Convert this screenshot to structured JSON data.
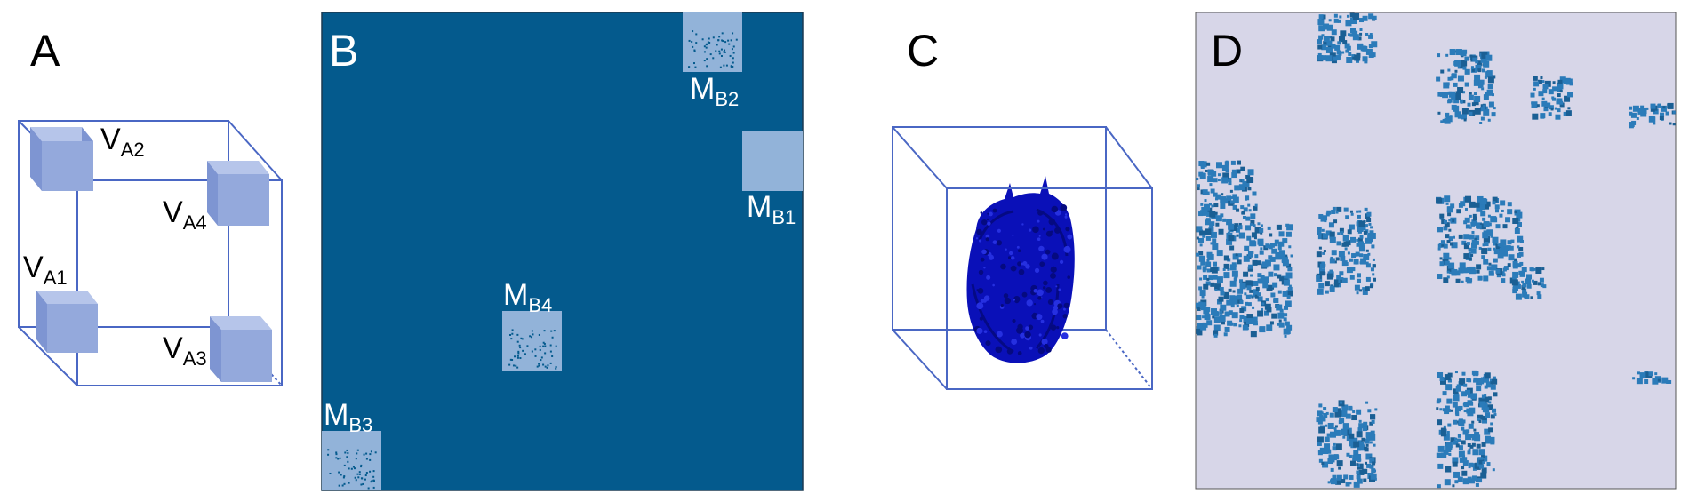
{
  "panels": {
    "a": {
      "letter": "A",
      "labels": [
        {
          "main": "V",
          "sub": "A2"
        },
        {
          "main": "V",
          "sub": "A4"
        },
        {
          "main": "V",
          "sub": "A1"
        },
        {
          "main": "V",
          "sub": "A3"
        }
      ]
    },
    "b": {
      "letter": "B",
      "labels": [
        {
          "main": "M",
          "sub": "B2"
        },
        {
          "main": "M",
          "sub": "B1"
        },
        {
          "main": "M",
          "sub": "B4"
        },
        {
          "main": "M",
          "sub": "B3"
        }
      ]
    },
    "c": {
      "letter": "C"
    },
    "d": {
      "letter": "D"
    }
  },
  "colors": {
    "cube_edge": "#4a67c4",
    "small_cube_front": "#94a9dc",
    "small_cube_top": "#b6c5ea",
    "small_cube_side": "#7e95d2",
    "matrix_bg": "#045a8d",
    "matrix_block": "#92b3d9",
    "blob": "#0a10b8",
    "heatmap_bg": "#d7d6e8",
    "heatmap_cell": "#2b7bb9"
  }
}
